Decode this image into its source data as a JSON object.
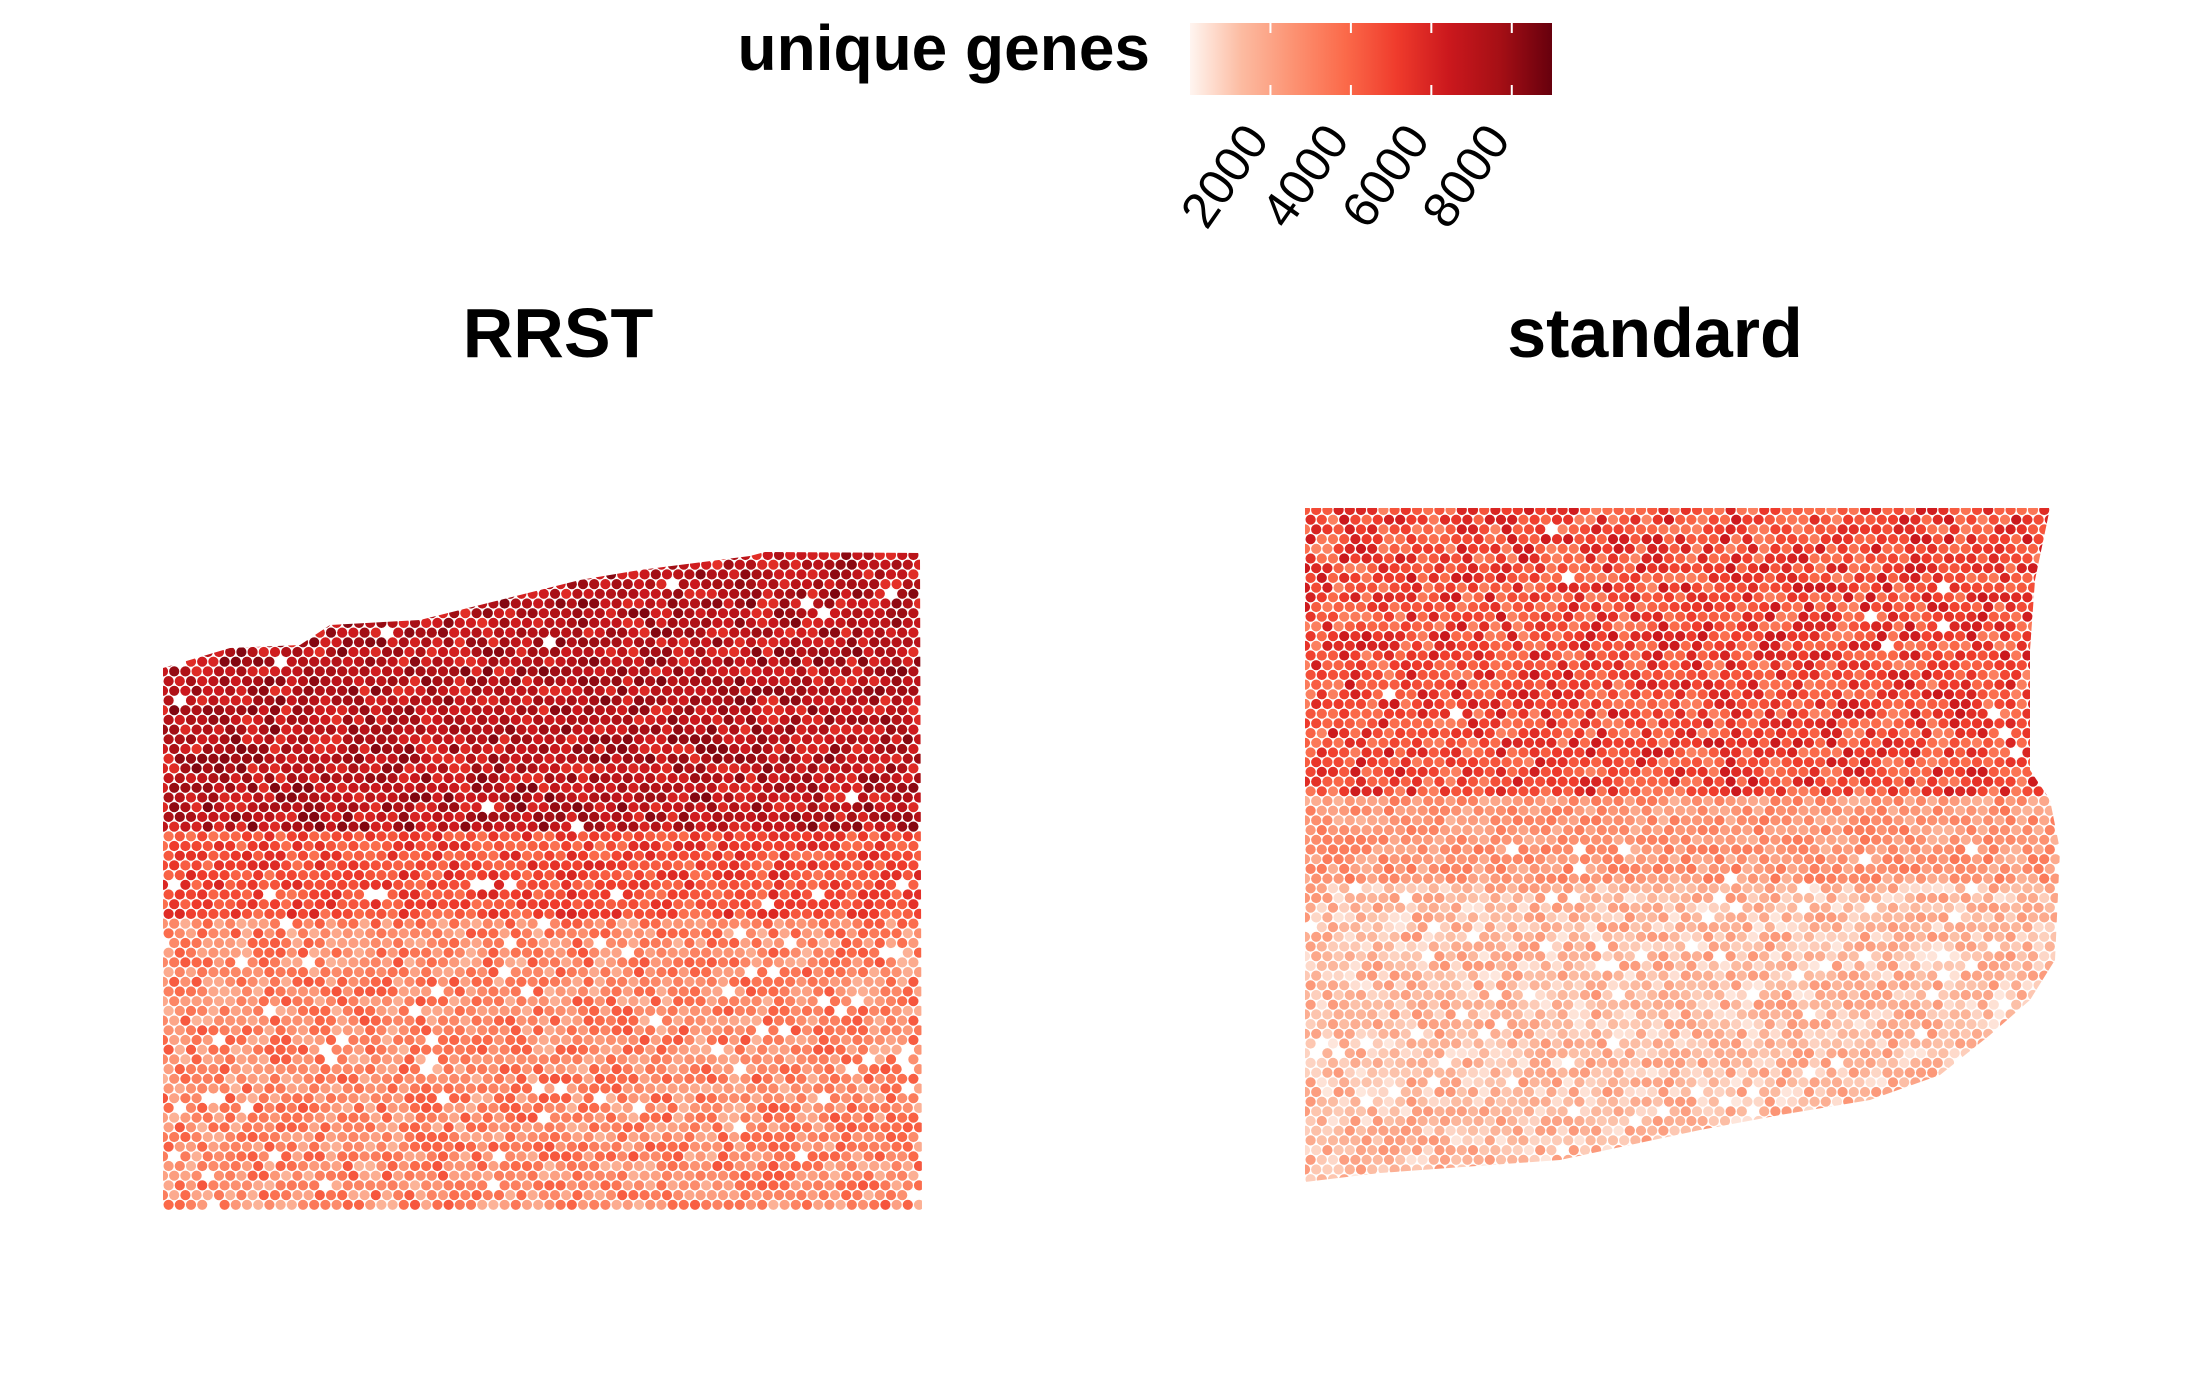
{
  "legend": {
    "title": "unique genes",
    "tick_labels": [
      "2000",
      "4000",
      "6000",
      "8000"
    ],
    "tick_values": [
      2000,
      4000,
      6000,
      8000
    ],
    "range": [
      0,
      9000
    ],
    "colors": [
      "#fff5f0",
      "#fcbba1",
      "#fc9272",
      "#fb6a4a",
      "#ef3b2c",
      "#cb181d",
      "#a50f15",
      "#67000d"
    ]
  },
  "chart_data": [
    {
      "type": "heatmap",
      "title": "RRST",
      "value_label": "unique genes",
      "grid": false,
      "tissue_layout": "hexagonal spot array",
      "regions": [
        {
          "rows": "upper tissue region",
          "approx_unique_genes": [
            5500,
            8500
          ]
        },
        {
          "rows": "middle transition band",
          "approx_unique_genes": [
            3500,
            6000
          ]
        },
        {
          "rows": "lower tissue region",
          "approx_unique_genes": [
            1500,
            4500
          ]
        }
      ]
    },
    {
      "type": "heatmap",
      "title": "standard",
      "value_label": "unique genes",
      "grid": false,
      "tissue_layout": "hexagonal spot array",
      "regions": [
        {
          "rows": "upper tissue region",
          "approx_unique_genes": [
            3000,
            6500
          ]
        },
        {
          "rows": "middle transition band",
          "approx_unique_genes": [
            1500,
            3500
          ]
        },
        {
          "rows": "lower tissue region",
          "approx_unique_genes": [
            300,
            2500
          ]
        }
      ]
    }
  ]
}
